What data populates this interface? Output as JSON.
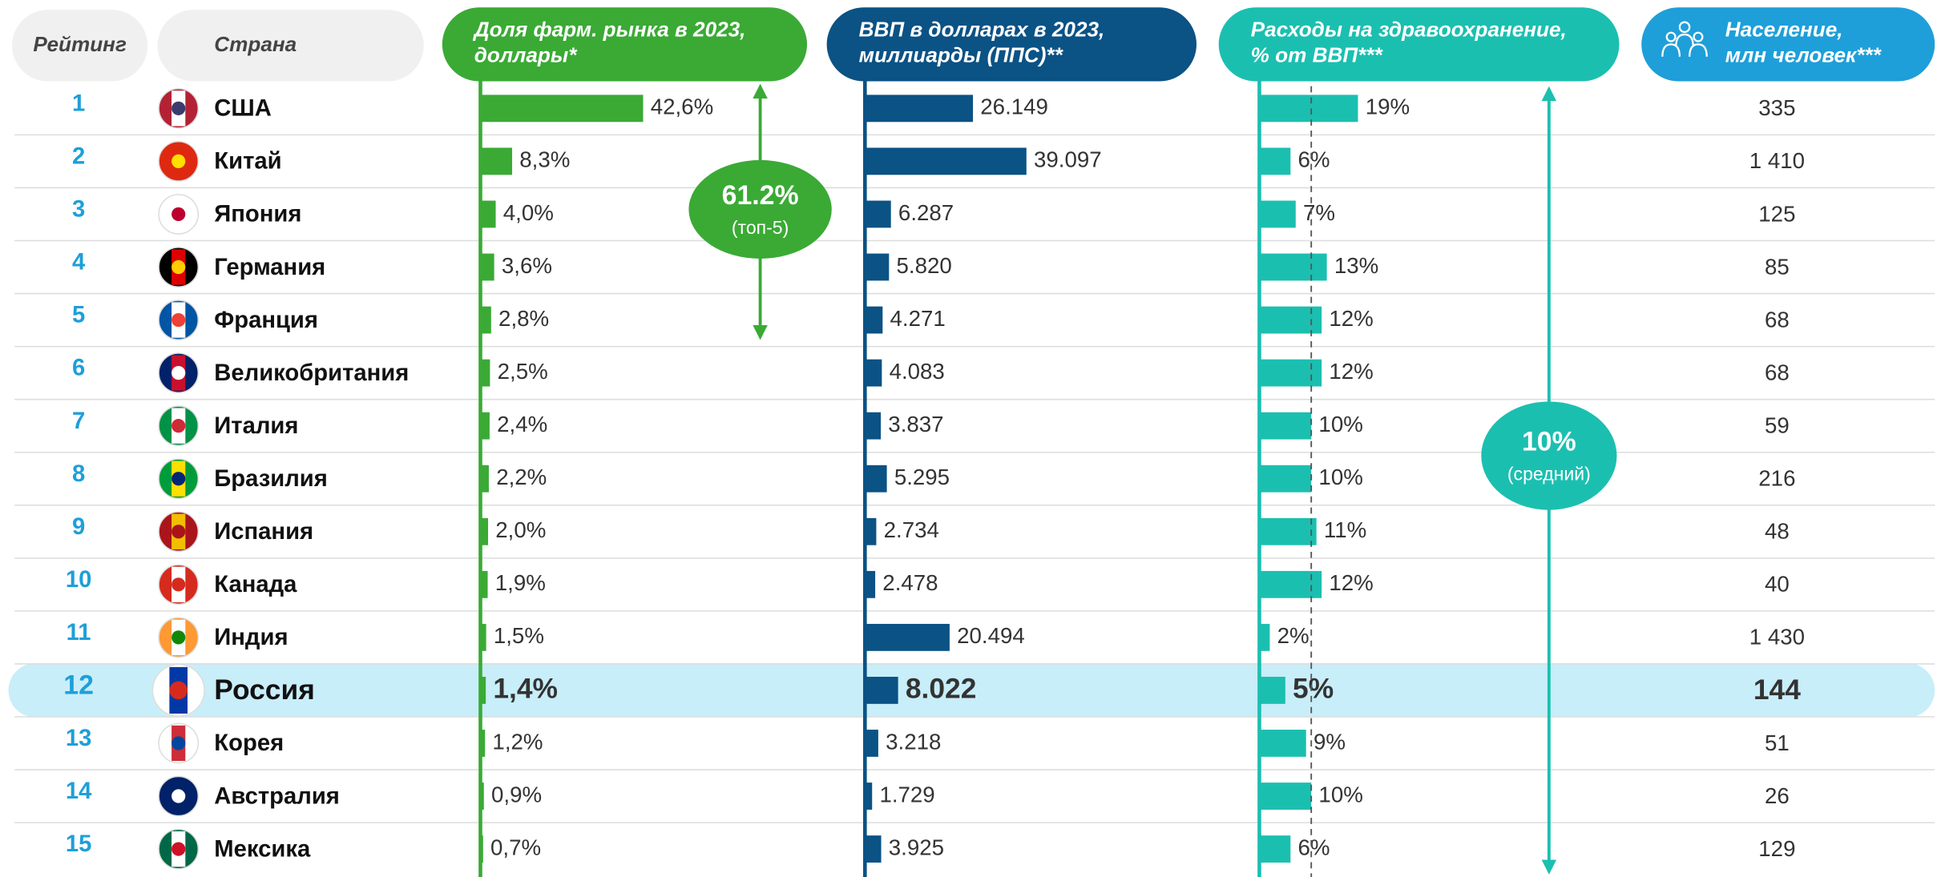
{
  "header": {
    "rank": "Рейтинг",
    "country": "Страна"
  },
  "highlight_row": 11,
  "ranks": [
    1,
    2,
    3,
    4,
    5,
    6,
    7,
    8,
    9,
    10,
    11,
    12,
    13,
    14,
    15
  ],
  "countries": [
    "США",
    "Китай",
    "Япония",
    "Германия",
    "Франция",
    "Великобритания",
    "Италия",
    "Бразилия",
    "Испания",
    "Канада",
    "Индия",
    "Россия",
    "Корея",
    "Австралия",
    "Мексика"
  ],
  "columns": [
    {
      "key": "pharma",
      "title": [
        "Доля фарм. рынка в 2023,",
        "доллары*"
      ],
      "color": "#3aaa35",
      "values": [
        42.6,
        8.3,
        4.0,
        3.6,
        2.8,
        2.5,
        2.4,
        2.2,
        2.0,
        1.9,
        1.5,
        1.4,
        1.2,
        0.9,
        0.7
      ],
      "value_labels": [
        "42,6%",
        "8,3%",
        "4,0%",
        "3,6%",
        "2,8%",
        "2,5%",
        "2,4%",
        "2,2%",
        "2,0%",
        "1,9%",
        "1,5%",
        "1,4%",
        "1,2%",
        "0,9%",
        "0,7%"
      ]
    },
    {
      "key": "gdp",
      "title": [
        "ВВП в долларах в 2023,",
        "миллиарды (ППС)**"
      ],
      "color": "#0b5285",
      "values": [
        26149,
        39097,
        6287,
        5820,
        4271,
        4083,
        3837,
        5295,
        2734,
        2478,
        20494,
        8022,
        3218,
        1729,
        3925
      ],
      "value_labels": [
        "26.149",
        "39.097",
        "6.287",
        "5.820",
        "4.271",
        "4.083",
        "3.837",
        "5.295",
        "2.734",
        "2.478",
        "20.494",
        "8.022",
        "3.218",
        "1.729",
        "3.925"
      ]
    },
    {
      "key": "health",
      "title": [
        "Расходы на здравоохранение,",
        "% от ВВП***"
      ],
      "color": "#1bbfb0",
      "values": [
        19,
        6,
        7,
        13,
        12,
        12,
        10,
        10,
        11,
        12,
        2,
        5,
        9,
        10,
        6
      ],
      "value_labels": [
        "19%",
        "6%",
        "7%",
        "13%",
        "12%",
        "12%",
        "10%",
        "10%",
        "11%",
        "12%",
        "2%",
        "5%",
        "9%",
        "10%",
        "6%"
      ]
    },
    {
      "key": "population",
      "title": [
        "Население,",
        "млн человек***"
      ],
      "color": "#1e9fd9",
      "values": [
        335,
        1410,
        125,
        85,
        68,
        68,
        59,
        216,
        48,
        40,
        1430,
        144,
        51,
        26,
        129
      ],
      "value_labels": [
        "335",
        "1 410",
        "125",
        "85",
        "68",
        "68",
        "59",
        "216",
        "48",
        "40",
        "1 430",
        "144",
        "51",
        "26",
        "129"
      ]
    }
  ],
  "annotations": {
    "top5": {
      "value": 61.2,
      "label": "61.2%",
      "note": "(топ-5)"
    },
    "average": {
      "value": 10,
      "label": "10%",
      "note": "(средний)"
    }
  }
}
